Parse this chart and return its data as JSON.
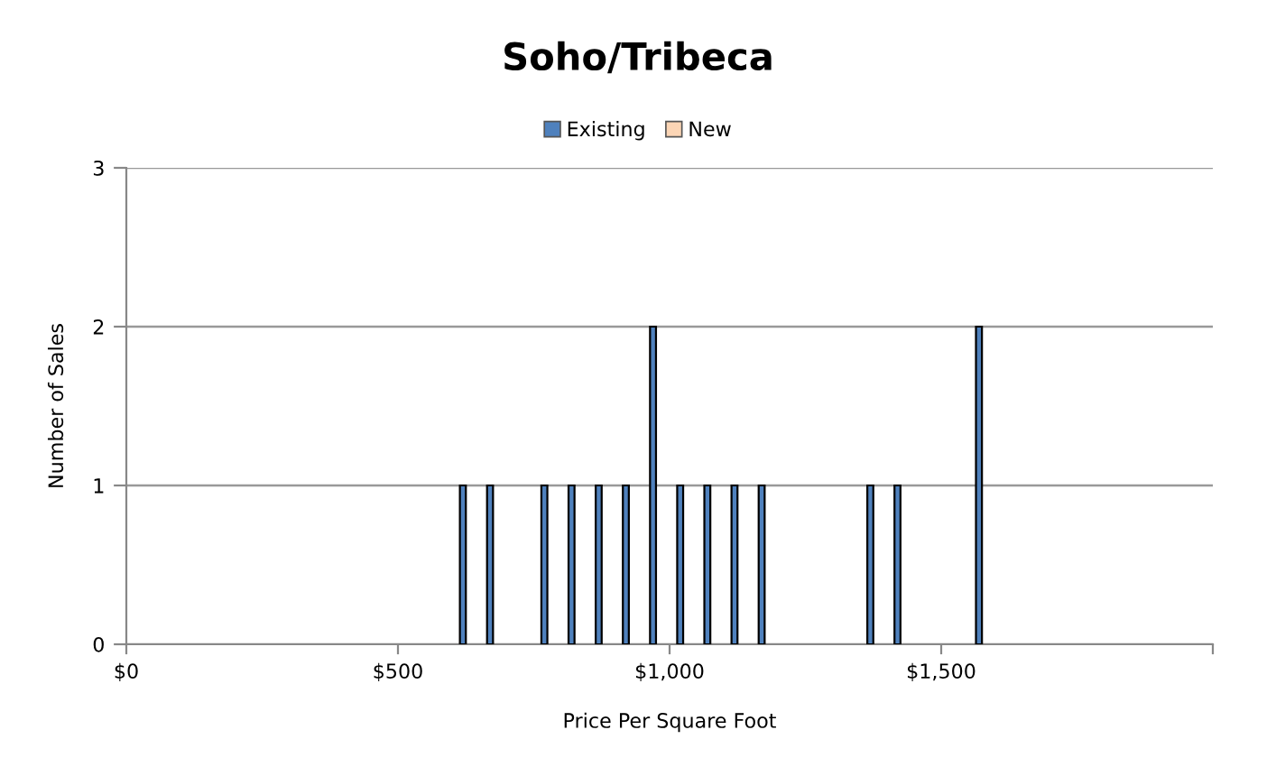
{
  "chart_data": {
    "type": "bar",
    "title": "Soho/Tribeca",
    "xlabel": "Price Per Square Foot",
    "ylabel": "Number of Sales",
    "x": [
      25,
      75,
      125,
      175,
      225,
      275,
      325,
      375,
      425,
      475,
      525,
      575,
      625,
      675,
      725,
      775,
      825,
      875,
      925,
      975,
      1025,
      1075,
      1125,
      1175,
      1225,
      1275,
      1325,
      1375,
      1425,
      1475,
      1525,
      1575,
      1625,
      1675,
      1725,
      1775,
      1825,
      1875,
      1925,
      1975
    ],
    "series": [
      {
        "name": "Existing",
        "color": "#4f81bd",
        "values": [
          0,
          0,
          0,
          0,
          0,
          0,
          0,
          0,
          0,
          0,
          0,
          0,
          1,
          1,
          0,
          1,
          1,
          1,
          1,
          2,
          1,
          1,
          1,
          1,
          0,
          0,
          0,
          1,
          1,
          0,
          0,
          2,
          0,
          0,
          0,
          0,
          0,
          0,
          0,
          0
        ]
      },
      {
        "name": "New",
        "color": "#fbd5b5",
        "values": [
          0,
          0,
          0,
          0,
          0,
          0,
          0,
          0,
          0,
          0,
          0,
          0,
          0,
          0,
          0,
          0,
          0,
          0,
          0,
          0,
          0,
          0,
          0,
          0,
          0,
          0,
          0,
          0,
          0,
          0,
          0,
          0,
          0,
          0,
          0,
          0,
          0,
          0,
          0,
          0
        ]
      }
    ],
    "xlim": [
      0,
      2000
    ],
    "xticks": [
      {
        "value": 0,
        "label": "$0"
      },
      {
        "value": 500,
        "label": "$500"
      },
      {
        "value": 1000,
        "label": "$1,000"
      },
      {
        "value": 1500,
        "label": "$1,500"
      },
      {
        "value": 2000,
        "label": null
      }
    ],
    "ylim": [
      0,
      3
    ],
    "yticks": [
      0,
      1,
      2,
      3
    ],
    "grid": "y",
    "legend": "top"
  }
}
